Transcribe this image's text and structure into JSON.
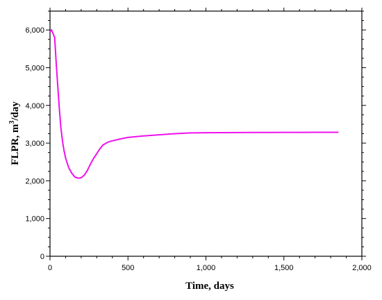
{
  "chart_data": {
    "type": "line",
    "title": "",
    "xlabel": "Time, days",
    "ylabel": {
      "prefix": "FLPR, m",
      "sup": "3",
      "suffix": "/day"
    },
    "xlim": [
      0,
      2000
    ],
    "ylim": [
      0,
      6500
    ],
    "xticks": [
      0,
      500,
      1000,
      1500,
      2000
    ],
    "xtick_labels": [
      "0",
      "500",
      "1,000",
      "1,500",
      "2,000"
    ],
    "yticks": [
      0,
      1000,
      2000,
      3000,
      4000,
      5000,
      6000
    ],
    "ytick_labels": [
      "0",
      "1,000",
      "2,000",
      "3,000",
      "4,000",
      "5,000",
      "6,000"
    ],
    "grid": false,
    "line_color": "#ee11ee",
    "series": [
      {
        "x": [
          0,
          10,
          20,
          30,
          40,
          50,
          60,
          70,
          80,
          90,
          100,
          120,
          140,
          160,
          180,
          200,
          220,
          240,
          260,
          280,
          300,
          320,
          340,
          360,
          380,
          400,
          450,
          500,
          600,
          700,
          800,
          900,
          1000,
          1100,
          1200,
          1300,
          1400,
          1500,
          1600,
          1700,
          1800,
          1850
        ],
        "y": [
          5950,
          6000,
          5900,
          5800,
          5100,
          4500,
          3900,
          3400,
          3050,
          2800,
          2600,
          2350,
          2200,
          2100,
          2070,
          2080,
          2150,
          2280,
          2450,
          2600,
          2720,
          2850,
          2950,
          3000,
          3040,
          3060,
          3110,
          3150,
          3190,
          3220,
          3250,
          3270,
          3275,
          3278,
          3280,
          3282,
          3284,
          3285,
          3285,
          3286,
          3287,
          3287
        ]
      }
    ]
  }
}
